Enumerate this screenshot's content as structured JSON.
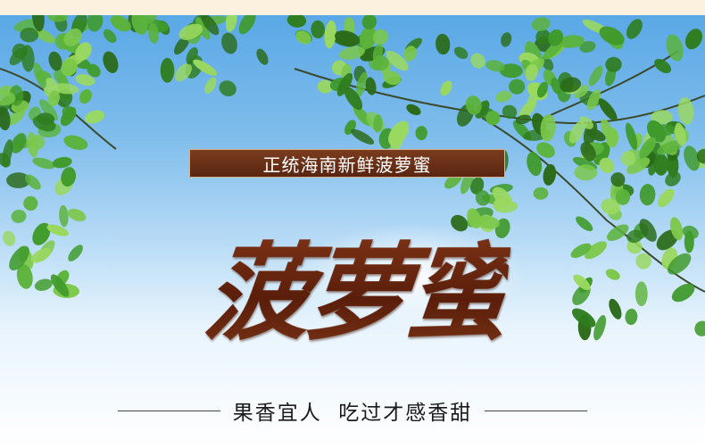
{
  "banner": {
    "subtitle": "正统海南新鲜菠萝蜜",
    "main_title": "菠萝蜜",
    "tagline": "果香宜人  吃过才感香甜"
  },
  "colors": {
    "sky_top": "#5aa8e6",
    "sky_bottom": "#ffffff",
    "subtitle_bar": "#6b2f16",
    "title_brown": "#6a2a12",
    "leaf_green": "#3f9a2a"
  },
  "icons": [
    "leaves-decoration"
  ]
}
